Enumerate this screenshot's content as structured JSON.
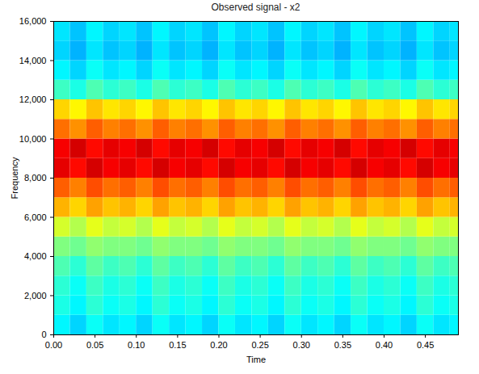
{
  "chart_data": {
    "type": "heatmap",
    "title": "Observed signal - x2",
    "xlabel": "Time",
    "ylabel": "Frequency",
    "xlim": [
      0,
      0.49
    ],
    "xticks": [
      0,
      0.05,
      0.1,
      0.15,
      0.2,
      0.25,
      0.3,
      0.35,
      0.4,
      0.45
    ],
    "ylim": [
      0,
      16000
    ],
    "yticks": [
      0,
      2000,
      4000,
      6000,
      8000,
      10000,
      12000,
      14000,
      16000
    ],
    "zlim": [
      -60,
      0
    ],
    "xbins": [
      0,
      0.02,
      0.04,
      0.06,
      0.08,
      0.1,
      0.12,
      0.14,
      0.16,
      0.18,
      0.2,
      0.22,
      0.24,
      0.26,
      0.28,
      0.3,
      0.32,
      0.34,
      0.36,
      0.38,
      0.4,
      0.42,
      0.44,
      0.46,
      0.48,
      0.49
    ],
    "ybins": [
      0,
      1000,
      2000,
      3000,
      4000,
      5000,
      6000,
      7000,
      8000,
      9000,
      10000,
      11000,
      12000,
      13000,
      14000,
      15000,
      16000
    ],
    "cells": [
      [
        -38,
        -40,
        -37,
        -39,
        -38,
        -40,
        -37,
        -39,
        -38,
        -40,
        -37,
        -39,
        -38,
        -40,
        -37,
        -39,
        -38,
        -40,
        -37,
        -39,
        -38,
        -40,
        -37,
        -39,
        -38
      ],
      [
        -36,
        -38,
        -35,
        -37,
        -36,
        -38,
        -35,
        -37,
        -36,
        -38,
        -35,
        -37,
        -36,
        -38,
        -35,
        -37,
        -36,
        -38,
        -35,
        -37,
        -36,
        -38,
        -35,
        -37,
        -36
      ],
      [
        -35,
        -37,
        -34,
        -36,
        -35,
        -37,
        -34,
        -36,
        -35,
        -37,
        -34,
        -36,
        -35,
        -37,
        -34,
        -36,
        -35,
        -37,
        -34,
        -36,
        -35,
        -37,
        -34,
        -36,
        -35
      ],
      [
        -33,
        -35,
        -32,
        -34,
        -33,
        -35,
        -32,
        -34,
        -33,
        -35,
        -32,
        -34,
        -33,
        -35,
        -32,
        -34,
        -33,
        -35,
        -32,
        -34,
        -33,
        -35,
        -32,
        -34,
        -33
      ],
      [
        -30,
        -31,
        -29,
        -30,
        -30,
        -31,
        -29,
        -30,
        -30,
        -31,
        -29,
        -30,
        -30,
        -31,
        -29,
        -30,
        -30,
        -31,
        -29,
        -30,
        -30,
        -31,
        -29,
        -30,
        -30
      ],
      [
        -25,
        -27,
        -24,
        -26,
        -25,
        -27,
        -24,
        -26,
        -25,
        -27,
        -24,
        -26,
        -25,
        -27,
        -24,
        -26,
        -25,
        -27,
        -24,
        -26,
        -25,
        -27,
        -24,
        -26,
        -25
      ],
      [
        -18,
        -20,
        -17,
        -19,
        -18,
        -20,
        -17,
        -19,
        -18,
        -20,
        -17,
        -19,
        -18,
        -20,
        -17,
        -19,
        -18,
        -20,
        -17,
        -19,
        -18,
        -20,
        -17,
        -19,
        -18
      ],
      [
        -13,
        -15,
        -12,
        -14,
        -13,
        -15,
        -12,
        -14,
        -13,
        -15,
        -12,
        -14,
        -13,
        -15,
        -12,
        -14,
        -13,
        -15,
        -12,
        -14,
        -13,
        -15,
        -12,
        -14,
        -13
      ],
      [
        -6,
        -8,
        -5,
        -7,
        -6,
        -8,
        -5,
        -7,
        -6,
        -8,
        -5,
        -7,
        -6,
        -8,
        -5,
        -7,
        -6,
        -8,
        -5,
        -7,
        -6,
        -8,
        -5,
        -7,
        -6
      ],
      [
        -7,
        -5,
        -8,
        -6,
        -7,
        -5,
        -8,
        -6,
        -7,
        -5,
        -8,
        -6,
        -7,
        -5,
        -8,
        -6,
        -7,
        -5,
        -8,
        -6,
        -7,
        -5,
        -8,
        -6,
        -7
      ],
      [
        -14,
        -16,
        -13,
        -15,
        -14,
        -16,
        -13,
        -15,
        -14,
        -16,
        -13,
        -15,
        -14,
        -16,
        -13,
        -15,
        -14,
        -16,
        -13,
        -15,
        -14,
        -16,
        -13,
        -15,
        -14
      ],
      [
        -20,
        -22,
        -19,
        -21,
        -20,
        -22,
        -19,
        -21,
        -20,
        -22,
        -19,
        -21,
        -20,
        -22,
        -19,
        -21,
        -20,
        -22,
        -19,
        -21,
        -20,
        -22,
        -19,
        -21,
        -20
      ],
      [
        -34,
        -36,
        -33,
        -35,
        -34,
        -36,
        -33,
        -35,
        -34,
        -36,
        -33,
        -35,
        -34,
        -36,
        -33,
        -35,
        -34,
        -36,
        -33,
        -35,
        -34,
        -36,
        -33,
        -35,
        -34
      ],
      [
        -38,
        -40,
        -37,
        -39,
        -38,
        -40,
        -37,
        -39,
        -38,
        -40,
        -37,
        -39,
        -38,
        -40,
        -37,
        -39,
        -38,
        -40,
        -37,
        -39,
        -38,
        -40,
        -37,
        -39,
        -38
      ],
      [
        -40,
        -42,
        -39,
        -41,
        -40,
        -42,
        -39,
        -41,
        -40,
        -42,
        -39,
        -41,
        -40,
        -42,
        -39,
        -41,
        -40,
        -42,
        -39,
        -41,
        -40,
        -42,
        -39,
        -41,
        -40
      ],
      [
        -39,
        -41,
        -38,
        -40,
        -39,
        -41,
        -38,
        -40,
        -39,
        -41,
        -38,
        -40,
        -39,
        -41,
        -38,
        -40,
        -39,
        -41,
        -38,
        -40,
        -39,
        -41,
        -38,
        -40,
        -39
      ]
    ]
  }
}
